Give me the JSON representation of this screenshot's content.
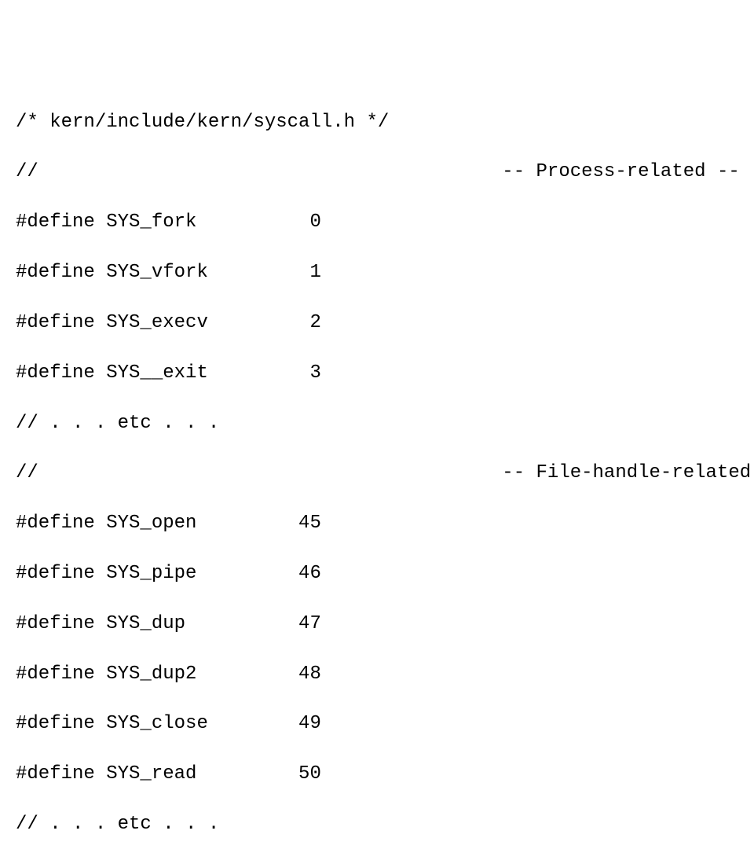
{
  "code": {
    "font_family": "Consolas, Courier New, monospace",
    "font_size": 24,
    "text_color": "#000000",
    "background_color": "#ffffff",
    "line_height": 1.33,
    "lines": [
      "/* kern/include/kern/syscall.h */",
      "//                                         -- Process-related --",
      "#define SYS_fork          0",
      "#define SYS_vfork         1",
      "#define SYS_execv         2",
      "#define SYS__exit         3",
      "// . . . etc . . .",
      "//                                         -- File-handle-related --",
      "#define SYS_open         45",
      "#define SYS_pipe         46",
      "#define SYS_dup          47",
      "#define SYS_dup2         48",
      "#define SYS_close        49",
      "#define SYS_read         50",
      "// . . . etc . . ."
    ]
  }
}
